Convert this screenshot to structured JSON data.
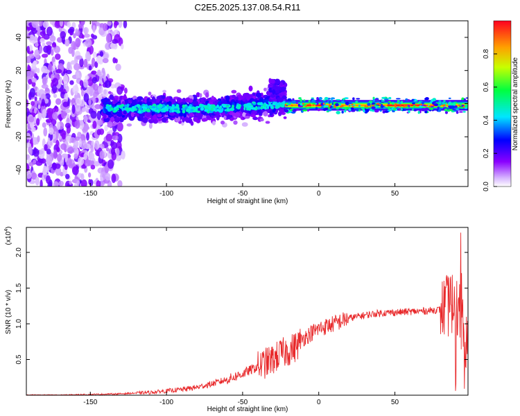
{
  "title": "C2E5.2025.137.08.54.R11",
  "chart_data": [
    {
      "type": "heatmap",
      "xlabel": "Height of straight line (km)",
      "ylabel": "Frequency (Hz)",
      "xlim": [
        -192,
        98
      ],
      "ylim": [
        -50,
        50
      ],
      "xticks": [
        -150,
        -100,
        -50,
        0,
        50
      ],
      "yticks": [
        -40,
        -20,
        0,
        20,
        40
      ],
      "colorbar": {
        "label": "Normalized spectral amplitude",
        "range": [
          0,
          1
        ],
        "ticks": [
          "0.0",
          "0.2",
          "0.4",
          "0.6",
          "0.8"
        ],
        "colormap": "rainbow (white-violet-blue-cyan-green-yellow-red)"
      },
      "regions": [
        {
          "x": [
            -192,
            -127
          ],
          "description": "broadband noise across all frequencies",
          "amplitude": 0.05
        },
        {
          "x": [
            -142,
            -22
          ],
          "center_freq": -3,
          "spread_hz": 8,
          "amplitude": 0.3
        },
        {
          "x": [
            -22,
            98
          ],
          "center_freq": -1,
          "spread_hz": 3,
          "amplitude": 0.85
        }
      ]
    },
    {
      "type": "line",
      "xlabel": "Height of straight line (km)",
      "ylabel": "SNR (10 * v/v)",
      "y_multiplier": "(x10^4)",
      "y_multiplier_parts": {
        "base": "(x10",
        "exp": "4",
        "close": ")"
      },
      "xlim": [
        -192,
        98
      ],
      "ylim": [
        0,
        2.35
      ],
      "xticks": [
        -150,
        -100,
        -50,
        0,
        50
      ],
      "yticks": [
        0.5,
        1.0,
        1.5,
        2.0
      ],
      "ytick_labels": [
        "0.5",
        "1.0",
        "1.5",
        "2.0"
      ],
      "series": [
        {
          "color": "#e8282a",
          "x": [
            -192,
            -170,
            -150,
            -130,
            -120,
            -110,
            -100,
            -90,
            -80,
            -70,
            -60,
            -50,
            -40,
            -30,
            -25,
            -20,
            -15,
            -10,
            -5,
            0,
            10,
            20,
            30,
            40,
            50,
            60,
            70,
            80,
            85,
            88,
            90,
            92,
            94,
            96,
            98
          ],
          "y": [
            0.0,
            0.0,
            0.01,
            0.02,
            0.03,
            0.04,
            0.06,
            0.08,
            0.11,
            0.16,
            0.22,
            0.3,
            0.4,
            0.5,
            0.58,
            0.62,
            0.68,
            0.8,
            0.87,
            0.93,
            1.0,
            1.08,
            1.12,
            1.15,
            1.16,
            1.17,
            1.18,
            1.2,
            1.25,
            1.3,
            1.28,
            1.15,
            0.95,
            0.8,
            0.65
          ]
        }
      ]
    }
  ]
}
